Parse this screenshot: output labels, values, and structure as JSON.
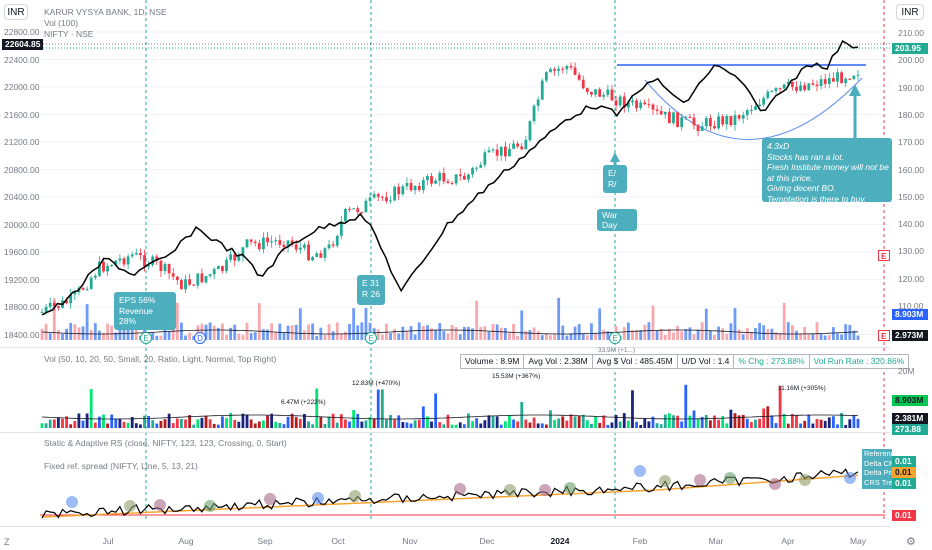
{
  "header": {
    "currency_left": "INR",
    "currency_right": "INR",
    "symbol_title": "KARUR VYSYA BANK, 1D, NSE",
    "vol_indicator": "Vol (100)",
    "compare_symbol": "NIFTY · NSE"
  },
  "price_axis_left": [
    "22800.00",
    "22400.00",
    "22000.00",
    "21600.00",
    "21200.00",
    "20800.00",
    "20400.00",
    "20000.00",
    "19600.00",
    "19200.00",
    "18800.00",
    "18400.00"
  ],
  "price_axis_right": [
    "210.00",
    "200.00",
    "190.00",
    "180.00",
    "170.00",
    "160.00",
    "150.00",
    "140.00",
    "130.00",
    "120.00",
    "110.00"
  ],
  "price_tags": {
    "nifty_last": "22604.85",
    "last_price": "203.95",
    "vol_last": "8.903M",
    "vol_avg": "2.973M",
    "vol_pane_last": "8.903M",
    "vol_pane_avg": "2.381M",
    "vol_pane_pct": "273.88",
    "vol_pane_20m": "20M",
    "rs_top": "0.01",
    "rs_mid": "0.01",
    "rs_low": "0.01",
    "rs_red": "0.01"
  },
  "rs_legend_labels": [
    "Reference",
    "Delta CRS",
    "Delta Price",
    "CRS Trend"
  ],
  "event_markers": [
    "E",
    "E",
    "D",
    "E",
    "E"
  ],
  "annotations": {
    "eps1": [
      "EPS 56%",
      "Revenue 28%"
    ],
    "eps2": [
      "E 31",
      "R 26"
    ],
    "eps3": [
      "E/",
      "R/"
    ],
    "war_day": "War Day",
    "main_note": [
      "4.3xD",
      "Stocks has ran a lot.",
      "Fresh Institute money will not be",
      "at this price.",
      "Giving decent BO.",
      "Temptation is there to buy."
    ],
    "ud_labels": [
      "6.47M (+222%)",
      "12.83M (+470%)",
      "15.53M (+367%)",
      "11.16M (+305%)",
      "33.9M (+1...)"
    ]
  },
  "vol_pane": {
    "legend": "Vol (50, 10, 20, 50, Small, 20, Ratio, Light, Normal, Top Right)",
    "stats": [
      "Volume : 8.9M",
      "Avg Vol : 2.38M",
      "Avg $ Vol : 485.45M",
      "U/D Vol : 1.4",
      "% Chg : 273.88%",
      "Vol Run Rate : 320.86%"
    ],
    "stat_colors": [
      "#131722",
      "#131722",
      "#131722",
      "#131722",
      "#22ab94",
      "#22ab94"
    ]
  },
  "rs_pane": {
    "legend1": "Static & Adaptive RS (close, NIFTY, 123, 123, Crossing, 0, Start)",
    "legend2": "Fixed ref. spread (NIFTY, Line, 5, 13, 21)"
  },
  "time_axis": [
    "Jul",
    "Aug",
    "Sep",
    "Oct",
    "Nov",
    "Dec",
    "2024",
    "Feb",
    "Mar",
    "Apr",
    "May"
  ],
  "footer": {
    "left_icon": "Z",
    "right_icon": "gear"
  },
  "colors": {
    "up": "#22ab94",
    "down": "#f23645",
    "nifty": "#000000",
    "accent": "#2962ff",
    "note": "#4dafbd",
    "vol_up": "#6f9bf6",
    "vol_down": "#f7a9ae",
    "rs_line": "#f7a530"
  }
}
